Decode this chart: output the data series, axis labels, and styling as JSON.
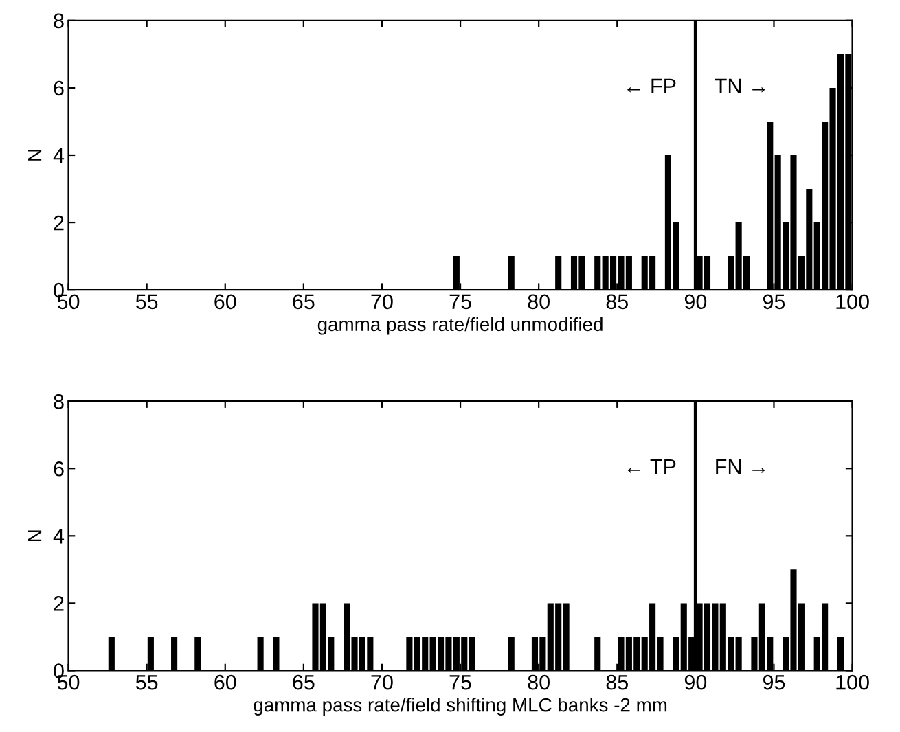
{
  "chart_data": [
    {
      "type": "histogram",
      "xlabel": "gamma pass rate/field unmodified",
      "ylabel": "N",
      "color": "#000000",
      "bins": [
        50,
        50.5,
        51,
        51.5,
        52,
        52.5,
        53,
        53.5,
        54,
        54.5,
        55,
        55.5,
        56,
        56.5,
        57,
        57.5,
        58,
        58.5,
        59,
        59.5,
        60,
        60.5,
        61,
        61.5,
        62,
        62.5,
        63,
        63.5,
        64,
        64.5,
        65,
        65.5,
        66,
        66.5,
        67,
        67.5,
        68,
        68.5,
        69,
        69.5,
        70,
        70.5,
        71,
        71.5,
        72,
        72.5,
        73,
        73.5,
        74,
        74.5,
        75,
        75.5,
        76,
        76.5,
        77,
        77.5,
        78,
        78.5,
        79,
        79.5,
        80,
        80.5,
        81,
        81.5,
        82,
        82.5,
        83,
        83.5,
        84,
        84.5,
        85,
        85.5,
        86,
        86.5,
        87,
        87.5,
        88,
        88.5,
        89,
        89.5,
        90,
        90.5,
        91,
        91.5,
        92,
        92.5,
        93,
        93.5,
        94,
        94.5,
        95,
        95.5,
        96,
        96.5,
        97,
        97.5,
        98,
        98.5,
        99,
        99.5,
        100
      ],
      "values": [
        0,
        0,
        0,
        0,
        0,
        0,
        0,
        0,
        0,
        0,
        0,
        0,
        0,
        0,
        0,
        0,
        0,
        0,
        0,
        0,
        0,
        0,
        0,
        0,
        0,
        0,
        0,
        0,
        0,
        0,
        0,
        0,
        0,
        0,
        0,
        0,
        0,
        0,
        0,
        0,
        0,
        0,
        0,
        0,
        0,
        0,
        0,
        0,
        0,
        1,
        0,
        0,
        0,
        0,
        0,
        0,
        1,
        0,
        0,
        0,
        0,
        0,
        1,
        0,
        1,
        1,
        0,
        1,
        1,
        1,
        1,
        1,
        0,
        1,
        1,
        0,
        4,
        2,
        0,
        0,
        1,
        1,
        0,
        0,
        1,
        2,
        1,
        0,
        0,
        5,
        4,
        2,
        4,
        1,
        3,
        2,
        5,
        6,
        7,
        7
      ],
      "xlim": [
        50,
        100
      ],
      "ylim": [
        0,
        8
      ],
      "xticks": [
        50,
        55,
        60,
        65,
        70,
        75,
        80,
        85,
        90,
        95,
        100
      ],
      "yticks": [
        0,
        2,
        4,
        6,
        8
      ],
      "ref_lines": [
        {
          "axis": "x",
          "value": 90,
          "color": "#000000"
        }
      ],
      "annotations": [
        "← FP",
        "TN →"
      ]
    },
    {
      "type": "histogram",
      "xlabel": "gamma pass rate/field shifting MLC banks -2 mm",
      "ylabel": "N",
      "color": "#000000",
      "bins": [
        50,
        50.5,
        51,
        51.5,
        52,
        52.5,
        53,
        53.5,
        54,
        54.5,
        55,
        55.5,
        56,
        56.5,
        57,
        57.5,
        58,
        58.5,
        59,
        59.5,
        60,
        60.5,
        61,
        61.5,
        62,
        62.5,
        63,
        63.5,
        64,
        64.5,
        65,
        65.5,
        66,
        66.5,
        67,
        67.5,
        68,
        68.5,
        69,
        69.5,
        70,
        70.5,
        71,
        71.5,
        72,
        72.5,
        73,
        73.5,
        74,
        74.5,
        75,
        75.5,
        76,
        76.5,
        77,
        77.5,
        78,
        78.5,
        79,
        79.5,
        80,
        80.5,
        81,
        81.5,
        82,
        82.5,
        83,
        83.5,
        84,
        84.5,
        85,
        85.5,
        86,
        86.5,
        87,
        87.5,
        88,
        88.5,
        89,
        89.5,
        90,
        90.5,
        91,
        91.5,
        92,
        92.5,
        93,
        93.5,
        94,
        94.5,
        95,
        95.5,
        96,
        96.5,
        97,
        97.5,
        98,
        98.5,
        99,
        99.5,
        100
      ],
      "values": [
        0,
        0,
        0,
        0,
        0,
        1,
        0,
        0,
        0,
        0,
        1,
        0,
        0,
        1,
        0,
        0,
        1,
        0,
        0,
        0,
        0,
        0,
        0,
        0,
        1,
        0,
        1,
        0,
        0,
        0,
        0,
        2,
        2,
        1,
        0,
        2,
        1,
        1,
        1,
        0,
        0,
        0,
        0,
        1,
        1,
        1,
        1,
        1,
        1,
        1,
        1,
        1,
        0,
        0,
        0,
        0,
        1,
        0,
        0,
        1,
        1,
        2,
        2,
        2,
        0,
        0,
        0,
        1,
        0,
        0,
        1,
        1,
        1,
        1,
        2,
        1,
        0,
        1,
        2,
        1,
        2,
        2,
        2,
        2,
        1,
        1,
        0,
        1,
        2,
        1,
        0,
        1,
        3,
        2,
        0,
        1,
        2,
        0,
        1,
        0
      ],
      "xlim": [
        50,
        100
      ],
      "ylim": [
        0,
        8
      ],
      "xticks": [
        50,
        55,
        60,
        65,
        70,
        75,
        80,
        85,
        90,
        95,
        100
      ],
      "yticks": [
        0,
        2,
        4,
        6,
        8
      ],
      "ref_lines": [
        {
          "axis": "x",
          "value": 90,
          "color": "#000000"
        }
      ],
      "annotations": [
        "← TP",
        "FN →"
      ]
    }
  ]
}
